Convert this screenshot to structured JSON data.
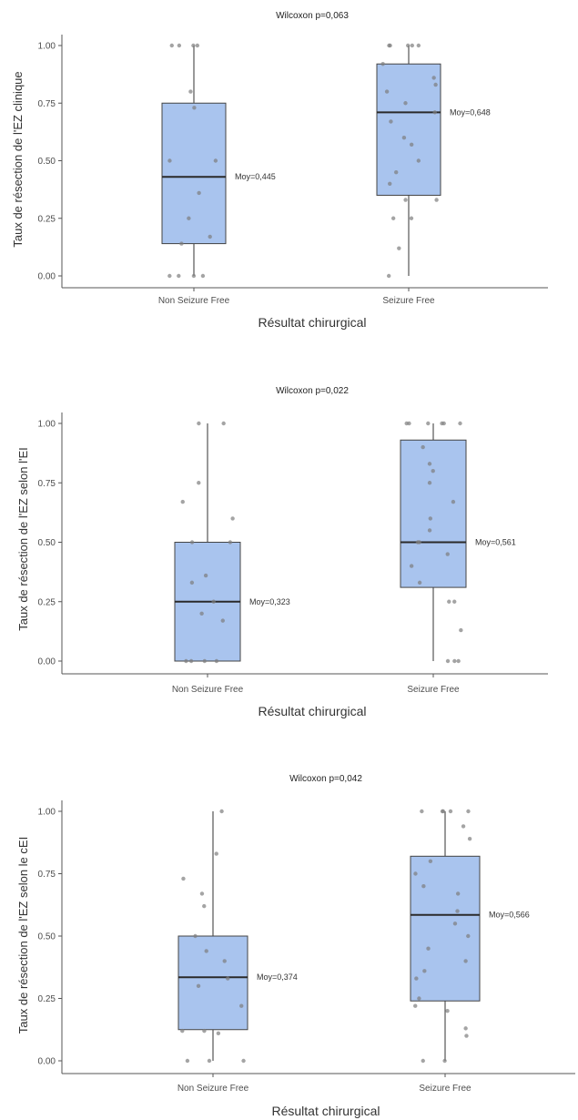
{
  "chart_data": [
    {
      "type": "boxplot",
      "title": "Wilcoxon p=0,063",
      "xlabel": "Résultat chirurgical",
      "ylabel": "Taux de résection de l'EZ clinique",
      "categories": [
        "Non Seizure Free",
        "Seizure Free"
      ],
      "ylim": [
        0,
        1
      ],
      "yticks": [
        "0.00",
        "0.25",
        "0.50",
        "0.75",
        "1.00"
      ],
      "grid": false,
      "boxes": [
        {
          "category": "Non Seizure Free",
          "q1": 0.14,
          "median": 0.43,
          "q3": 0.75,
          "whisker_low": 0.0,
          "whisker_high": 1.0,
          "mean_label": "Moy=0,445",
          "points": [
            1.0,
            1.0,
            1.0,
            1.0,
            0.8,
            0.73,
            0.5,
            0.5,
            0.36,
            0.25,
            0.14,
            0.17,
            0.0,
            0.0,
            0.0,
            0.0
          ]
        },
        {
          "category": "Seizure Free",
          "q1": 0.35,
          "median": 0.71,
          "q3": 0.92,
          "whisker_low": 0.0,
          "whisker_high": 1.0,
          "mean_label": "Moy=0,648",
          "points": [
            1.0,
            1.0,
            1.0,
            1.0,
            1.0,
            0.92,
            0.86,
            0.83,
            0.8,
            0.75,
            0.71,
            0.67,
            0.6,
            0.57,
            0.5,
            0.45,
            0.4,
            0.33,
            0.33,
            0.25,
            0.25,
            0.12,
            0.0
          ]
        }
      ]
    },
    {
      "type": "boxplot",
      "title": "Wilcoxon p=0,022",
      "xlabel": "Résultat chirurgical",
      "ylabel": "Taux de résection de l'EZ selon l'EI",
      "categories": [
        "Non Seizure Free",
        "Seizure Free"
      ],
      "ylim": [
        0,
        1
      ],
      "yticks": [
        "0.00",
        "0.25",
        "0.50",
        "0.75",
        "1.00"
      ],
      "grid": false,
      "boxes": [
        {
          "category": "Non Seizure Free",
          "q1": 0.0,
          "median": 0.25,
          "q3": 0.5,
          "whisker_low": 0.0,
          "whisker_high": 1.0,
          "mean_label": "Moy=0,323",
          "points": [
            1.0,
            1.0,
            0.75,
            0.67,
            0.6,
            0.5,
            0.5,
            0.36,
            0.33,
            0.25,
            0.2,
            0.17,
            0.0,
            0.0,
            0.0,
            0.0
          ]
        },
        {
          "category": "Seizure Free",
          "q1": 0.31,
          "median": 0.5,
          "q3": 0.93,
          "whisker_low": 0.0,
          "whisker_high": 1.0,
          "mean_label": "Moy=0,561",
          "points": [
            1.0,
            1.0,
            1.0,
            1.0,
            1.0,
            1.0,
            0.9,
            0.83,
            0.8,
            0.75,
            0.67,
            0.6,
            0.55,
            0.5,
            0.5,
            0.45,
            0.4,
            0.33,
            0.25,
            0.25,
            0.13,
            0.0,
            0.0,
            0.0
          ]
        }
      ]
    },
    {
      "type": "boxplot",
      "title": "Wilcoxon p=0,042",
      "xlabel": "Résultat chirurgical",
      "ylabel": "Taux de résection de l'EZ selon le cEI",
      "categories": [
        "Non Seizure Free",
        "Seizure Free"
      ],
      "ylim": [
        0,
        1
      ],
      "yticks": [
        "0.00",
        "0.25",
        "0.50",
        "0.75",
        "1.00"
      ],
      "grid": false,
      "boxes": [
        {
          "category": "Non Seizure Free",
          "q1": 0.125,
          "median": 0.335,
          "q3": 0.5,
          "whisker_low": 0.0,
          "whisker_high": 1.0,
          "mean_label": "Moy=0,374",
          "points": [
            1.0,
            0.83,
            0.73,
            0.67,
            0.62,
            0.5,
            0.44,
            0.4,
            0.33,
            0.3,
            0.22,
            0.12,
            0.12,
            0.11,
            0.0,
            0.0,
            0.0
          ]
        },
        {
          "category": "Seizure Free",
          "q1": 0.24,
          "median": 0.585,
          "q3": 0.82,
          "whisker_low": 0.0,
          "whisker_high": 1.0,
          "mean_label": "Moy=0,566",
          "points": [
            1.0,
            1.0,
            1.0,
            1.0,
            1.0,
            0.94,
            0.89,
            0.8,
            0.75,
            0.7,
            0.67,
            0.6,
            0.55,
            0.5,
            0.45,
            0.4,
            0.36,
            0.33,
            0.25,
            0.22,
            0.2,
            0.13,
            0.1,
            0.0,
            0.0
          ]
        }
      ]
    }
  ]
}
